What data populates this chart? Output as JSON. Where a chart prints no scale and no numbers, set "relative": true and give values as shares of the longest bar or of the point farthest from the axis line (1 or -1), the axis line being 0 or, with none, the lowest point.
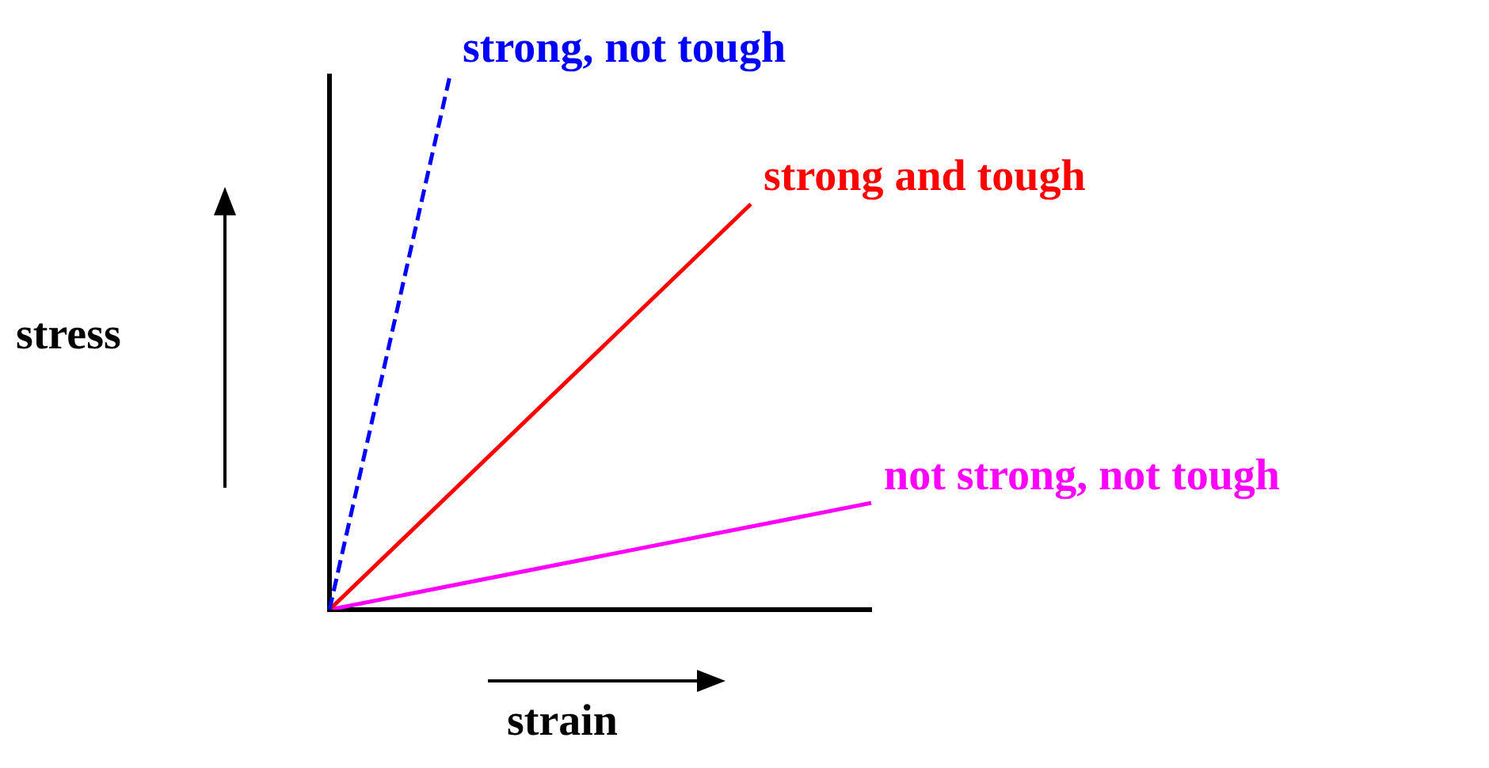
{
  "chart_data": {
    "type": "line",
    "relative": true,
    "xlabel": "strain",
    "ylabel": "stress",
    "legend": false,
    "grid": false,
    "tick_labels": false,
    "marker": "none",
    "categories": [
      null,
      null,
      null,
      null,
      null,
      null,
      null,
      null,
      null,
      null
    ],
    "series": [
      {
        "name": "strong, not tough",
        "color": "#0000ff",
        "line_style": "dashed",
        "values": [
          0,
          null,
          1,
          null,
          null,
          null,
          null,
          null,
          null,
          null
        ]
      },
      {
        "name": "strong and tough",
        "color": "#ff0000",
        "line_style": "solid",
        "values": [
          0,
          null,
          null,
          null,
          null,
          null,
          null,
          0.76,
          null,
          null
        ]
      },
      {
        "name": "not strong, not tough",
        "color": "#ff00ff",
        "line_style": "solid",
        "values": [
          0,
          null,
          null,
          null,
          null,
          null,
          null,
          null,
          null,
          0.2
        ]
      }
    ]
  }
}
